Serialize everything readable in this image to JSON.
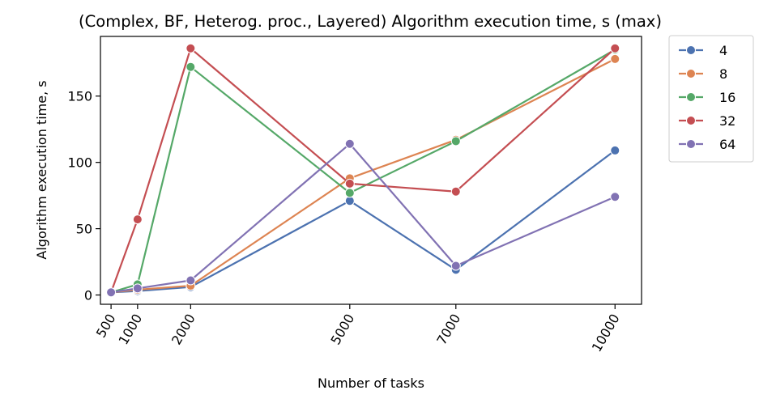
{
  "chart_data": {
    "type": "line",
    "title": "(Complex, BF, Heterog. proc., Layered) Algorithm execution time, s (max)",
    "xlabel": "Number of tasks",
    "ylabel": "Algorithm execution time, s",
    "x": [
      500,
      1000,
      2000,
      5000,
      7000,
      10000
    ],
    "x_ticks": [
      "500",
      "1000",
      "2000",
      "5000",
      "7000",
      "10000"
    ],
    "y_ticks": [
      "0",
      "50",
      "100",
      "150"
    ],
    "xlim": [
      300,
      10500
    ],
    "ylim": [
      -7,
      195
    ],
    "grid": false,
    "legend_position": "outside-right",
    "series": [
      {
        "name": "4",
        "color": "#4c72b0",
        "values": [
          2,
          3,
          6,
          71,
          19,
          109
        ]
      },
      {
        "name": "8",
        "color": "#dd8452",
        "values": [
          2,
          4,
          7,
          88,
          117,
          178
        ]
      },
      {
        "name": "16",
        "color": "#55a868",
        "values": [
          2,
          8,
          172,
          77,
          116,
          185
        ]
      },
      {
        "name": "32",
        "color": "#c44e52",
        "values": [
          2,
          57,
          186,
          84,
          78,
          186
        ]
      },
      {
        "name": "64",
        "color": "#8172b3",
        "values": [
          2,
          5,
          11,
          114,
          22,
          74
        ]
      }
    ]
  }
}
